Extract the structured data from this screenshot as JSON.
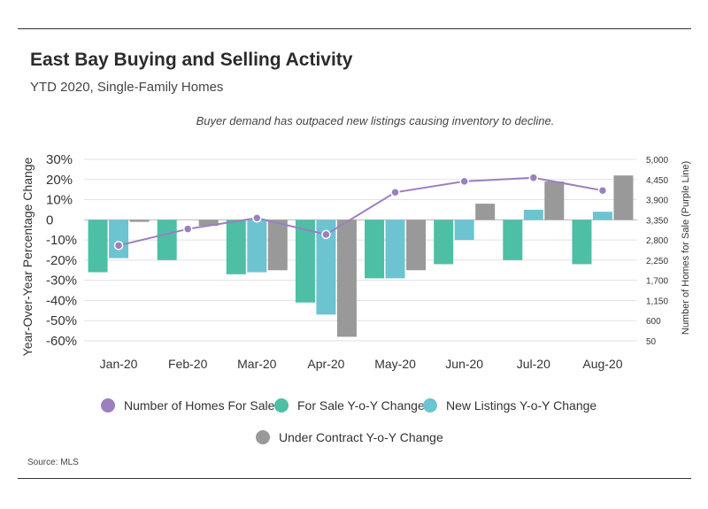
{
  "header": {
    "title": "East Bay Buying and Selling Activity",
    "subtitle": "YTD 2020, Single-Family Homes"
  },
  "footer": {
    "source": "Source:  MLS"
  },
  "chart_data": {
    "type": "bar",
    "annotation": "Buyer demand has outpaced new listings causing inventory to decline.",
    "categories": [
      "Jan-20",
      "Feb-20",
      "Mar-20",
      "Apr-20",
      "May-20",
      "Jun-20",
      "Jul-20",
      "Aug-20"
    ],
    "ylabel": "Year-Over-Year Percentage Change",
    "y2label": "Number of Homes for Sale (Purple Line)",
    "y_ticks": [
      "30%",
      "20%",
      "10%",
      "0",
      "-10%",
      "-20%",
      "-30%",
      "-40%",
      "-50%",
      "-60%"
    ],
    "y_tick_values": [
      30,
      20,
      10,
      0,
      -10,
      -20,
      -30,
      -40,
      -50,
      -60
    ],
    "y2_ticks": [
      "5,000",
      "4,450",
      "3,900",
      "3,350",
      "2,800",
      "2,250",
      "1,700",
      "1,150",
      "600",
      "50"
    ],
    "y2_tick_values": [
      5000,
      4450,
      3900,
      3350,
      2800,
      2250,
      1700,
      1150,
      600,
      50
    ],
    "ylim": [
      -60,
      30
    ],
    "y2lim": [
      50,
      5000
    ],
    "grid": true,
    "series": [
      {
        "name": "For Sale Y-o-Y Change",
        "color": "#4dbfa5",
        "values": [
          -26,
          -20,
          -27,
          -41,
          -29,
          -22,
          -20,
          -22
        ]
      },
      {
        "name": "New Listings Y-o-Y Change",
        "color": "#6cc4d1",
        "values": [
          -19,
          null,
          -26,
          -47,
          -29,
          -10,
          5,
          4
        ]
      },
      {
        "name": "Under Contract Y-o-Y Change",
        "color": "#999999",
        "values": [
          -1,
          -3,
          -25,
          -58,
          -25,
          8,
          19,
          22
        ]
      }
    ],
    "line_series": {
      "name": "Number of Homes For Sale",
      "color": "#9b7fc0",
      "values": [
        2650,
        3100,
        3400,
        2950,
        4100,
        4400,
        4500,
        4150
      ]
    },
    "legend_position": "bottom"
  }
}
